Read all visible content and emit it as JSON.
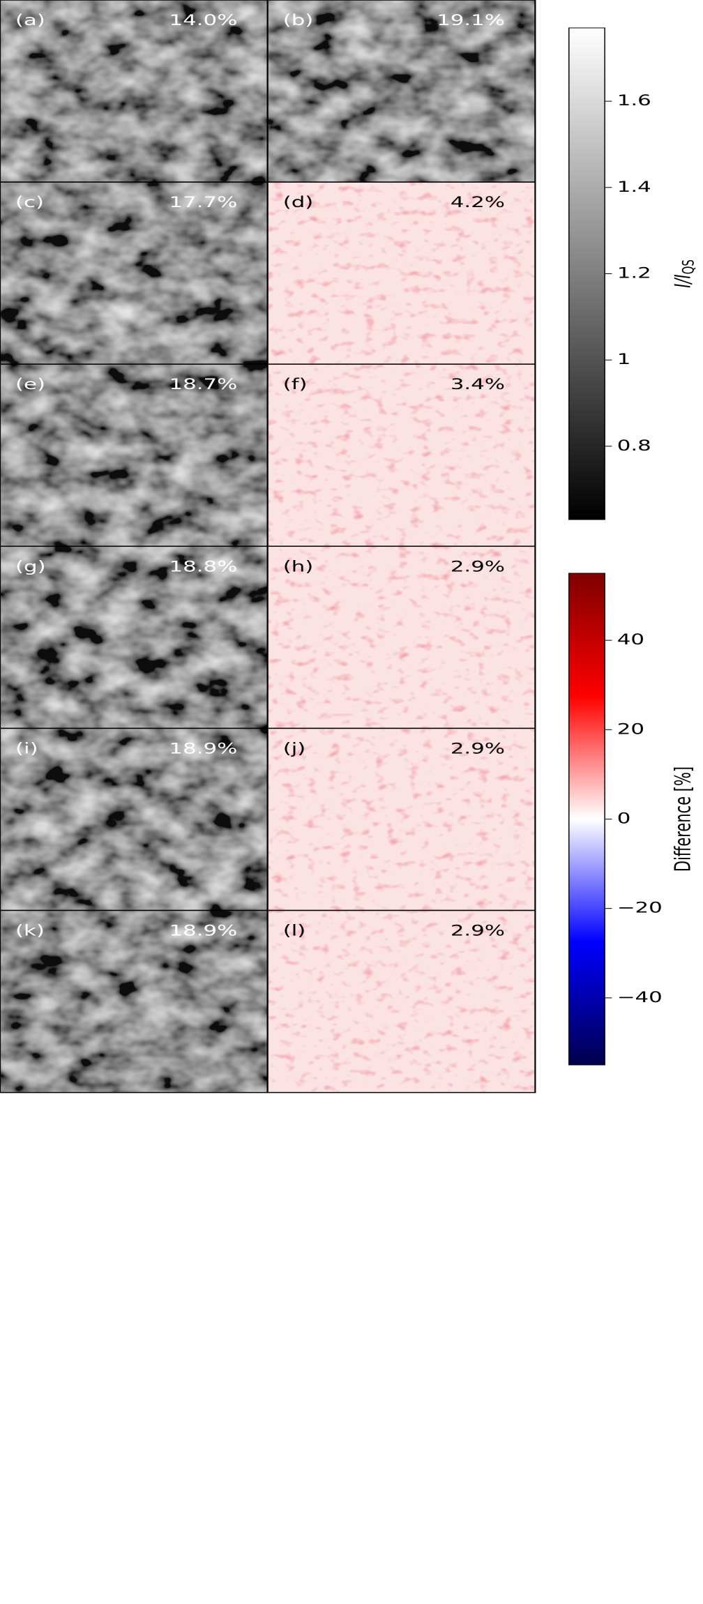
{
  "panels": [
    {
      "label": "(a)",
      "value": "14.0%",
      "colormap": "gray"
    },
    {
      "label": "(b)",
      "value": "19.1%",
      "colormap": "gray"
    },
    {
      "label": "(c)",
      "value": "17.7%",
      "colormap": "gray"
    },
    {
      "label": "(d)",
      "value": "4.2%",
      "colormap": "bwr"
    },
    {
      "label": "(e)",
      "value": "18.7%",
      "colormap": "gray"
    },
    {
      "label": "(f)",
      "value": "3.4%",
      "colormap": "bwr"
    },
    {
      "label": "(g)",
      "value": "18.8%",
      "colormap": "gray"
    },
    {
      "label": "(h)",
      "value": "2.9%",
      "colormap": "bwr"
    },
    {
      "label": "(i)",
      "value": "18.9%",
      "colormap": "gray"
    },
    {
      "label": "(j)",
      "value": "2.9%",
      "colormap": "bwr"
    },
    {
      "label": "(k)",
      "value": "18.9%",
      "colormap": "gray"
    },
    {
      "label": "(l)",
      "value": "2.9%",
      "colormap": "bwr"
    }
  ],
  "colorbars": [
    {
      "label": "I/I",
      "label_subscript": "QS",
      "colormap": "gray",
      "lim": [
        0.63,
        1.77
      ],
      "ticks": [
        0.8,
        1.0,
        1.2,
        1.4,
        1.6
      ]
    },
    {
      "label": "Difference [%]",
      "colormap": "bwr",
      "lim": [
        -55,
        55
      ],
      "ticks": [
        {
          "value": -40,
          "label": "−40"
        },
        {
          "value": -20,
          "label": "−20"
        },
        0,
        20,
        40
      ]
    }
  ]
}
